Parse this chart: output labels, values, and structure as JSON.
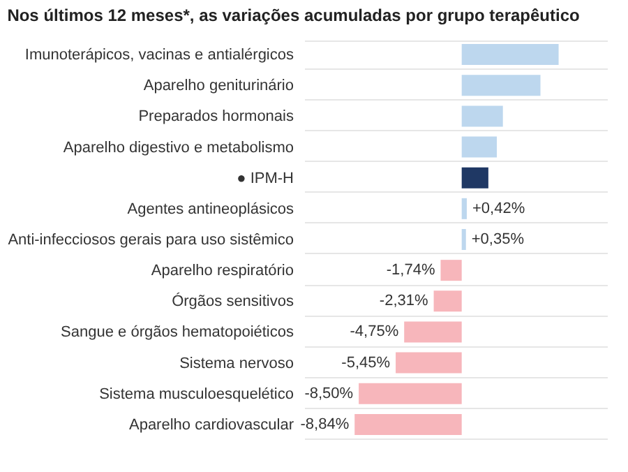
{
  "chart_data": {
    "type": "bar",
    "orientation": "horizontal",
    "title": "Nos últimos 12 meses*, as variações acumuladas por grupo terapêutico",
    "categories": [
      "Imunoterápicos, vacinas e antialérgicos",
      "Aparelho geniturinário",
      "Preparados hormonais",
      "Aparelho digestivo e metabolismo",
      "● IPM-H",
      "Agentes antineoplásicos",
      "Anti-infecciosos gerais para uso sistêmico",
      "Aparelho respiratório",
      "Órgãos sensitivos",
      "Sangue e órgãos hematopoiéticos",
      "Sistema nervoso",
      "Sistema musculoesquelético",
      "Aparelho cardiovascular"
    ],
    "values": [
      8.0,
      6.5,
      3.4,
      2.9,
      2.2,
      0.42,
      0.35,
      -1.74,
      -2.31,
      -4.75,
      -5.45,
      -8.5,
      -8.84
    ],
    "colors": [
      "#bdd7ee",
      "#bdd7ee",
      "#bdd7ee",
      "#bdd7ee",
      "#1f3864",
      "#bdd7ee",
      "#bdd7ee",
      "#f7b6bb",
      "#f7b6bb",
      "#f7b6bb",
      "#f7b6bb",
      "#f7b6bb",
      "#f7b6bb"
    ],
    "value_labels": [
      null,
      null,
      null,
      null,
      null,
      "+0,42%",
      "+0,35%",
      "-1,74%",
      "-2,31%",
      "-4,75%",
      "-5,45%",
      "-8,50%",
      "-8,84%"
    ],
    "xlim": [
      -13,
      12
    ],
    "grid": "y"
  }
}
